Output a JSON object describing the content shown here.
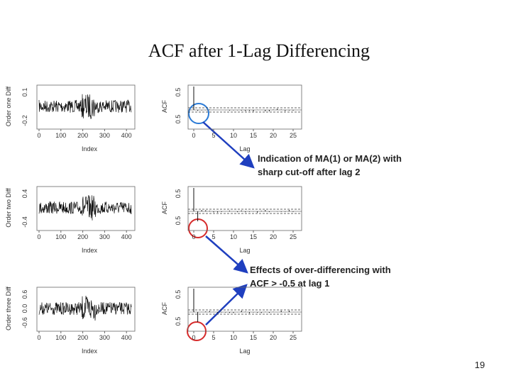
{
  "title": "ACF after 1-Lag Differencing",
  "panels": [
    {
      "series_ylabel": "Order one Diff",
      "series_yticks": [
        "0.1",
        "-0.2"
      ],
      "series_xticks": [
        "0",
        "100",
        "200",
        "300",
        "400"
      ],
      "series_xlabel": "Index",
      "acf_ylabel": "ACF",
      "acf_yticks": [
        "0.5",
        "0.5"
      ],
      "acf_xticks": [
        "0",
        "5",
        "10",
        "15",
        "20",
        "25"
      ],
      "acf_xlabel": "Lag"
    },
    {
      "series_ylabel": "Order two Diff",
      "series_yticks": [
        "0.4",
        "-0.4"
      ],
      "series_xticks": [
        "0",
        "100",
        "200",
        "300",
        "400"
      ],
      "series_xlabel": "Index",
      "acf_ylabel": "ACF",
      "acf_yticks": [
        "0.5",
        "0.5"
      ],
      "acf_xticks": [
        "0",
        "5",
        "10",
        "15",
        "20",
        "25"
      ],
      "acf_xlabel": "Lag"
    },
    {
      "series_ylabel": "Order three Diff",
      "series_yticks": [
        "0.6",
        "0.0",
        "-0.6"
      ],
      "series_xticks": [
        "0",
        "100",
        "200",
        "300",
        "400"
      ],
      "series_xlabel": "Index",
      "acf_ylabel": "ACF",
      "acf_yticks": [
        "0.5",
        "0.5"
      ],
      "acf_xticks": [
        "0",
        "5",
        "10",
        "15",
        "20",
        "25"
      ],
      "acf_xlabel": "Lag"
    }
  ],
  "annotations": [
    {
      "lines": [
        "Indication of MA(1) or MA(2) with",
        "sharp cut-off after lag 2"
      ]
    },
    {
      "lines": [
        "Effects of over-differencing with",
        "ACF > -0.5 at lag 1"
      ]
    }
  ],
  "page_number": "19"
}
